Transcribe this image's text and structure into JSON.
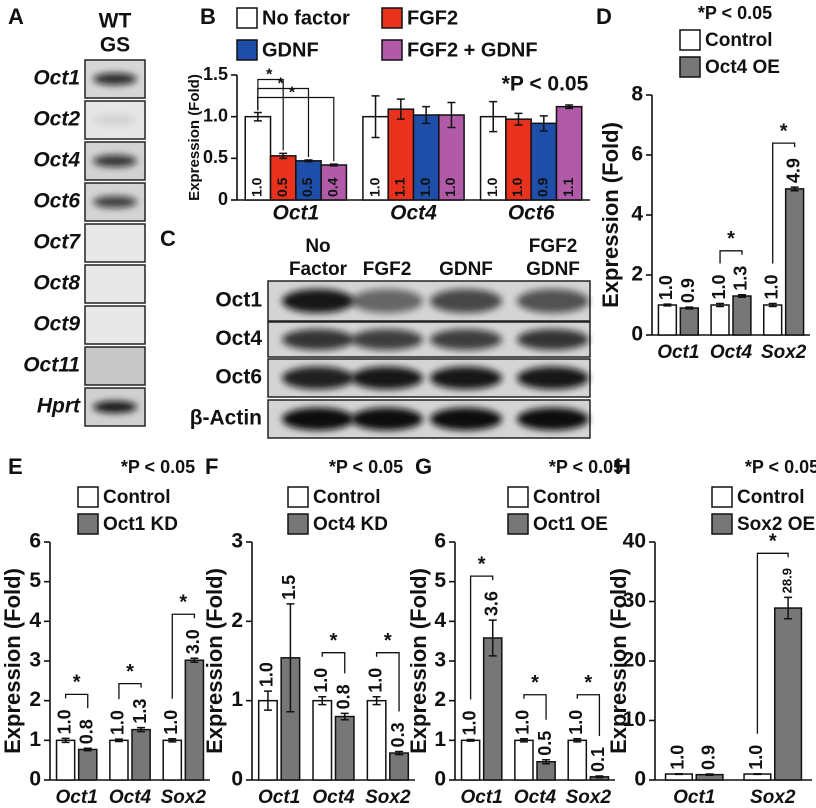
{
  "gels": [
    {
      "panel": "A",
      "header": [
        "WT",
        "GS"
      ],
      "rows": [
        "Oct1",
        "Oct2",
        "Oct4",
        "Oct6",
        "Oct7",
        "Oct8",
        "Oct9",
        "Oct11",
        "Hprt"
      ]
    },
    {
      "panel": "C",
      "columns": [
        [
          "No",
          "Factor"
        ],
        [
          "FGF2"
        ],
        [
          "GDNF"
        ],
        [
          "FGF2",
          "GDNF"
        ]
      ],
      "rows": [
        "Oct1",
        "Oct4",
        "Oct6",
        "β-Actin"
      ]
    }
  ],
  "chart_data": [
    {
      "panel": "B",
      "type": "bar",
      "y_label": "Expression (Fold)",
      "annotation": "*P < 0.05",
      "significance_marker": "*",
      "categories": [
        "Oct1",
        "Oct4",
        "Oct6"
      ],
      "ylim": [
        0,
        1.5
      ],
      "yticks": [
        0,
        0.5,
        {
          "value": 1,
          "label": "1.0"
        },
        1.5
      ],
      "significant": [
        true,
        false,
        false
      ],
      "series": [
        {
          "name": "No factor",
          "color": "#ffffff",
          "values": [
            1,
            1,
            1
          ],
          "errors": [
            0.05,
            0.25,
            0.18
          ],
          "value_labels": [
            "1.0",
            "1.0",
            "1.0"
          ]
        },
        {
          "name": "FGF2",
          "color": "#e8321e",
          "values": [
            0.53,
            1.09,
            0.97
          ],
          "errors": [
            0.03,
            0.12,
            0.07
          ],
          "value_labels": [
            "0.5",
            "1.1",
            "1.0"
          ]
        },
        {
          "name": "GDNF",
          "color": "#1f4ea8",
          "values": [
            0.47,
            1.02,
            0.92
          ],
          "errors": [
            0.01,
            0.1,
            0.09
          ],
          "value_labels": [
            "0.5",
            "1.0",
            "0.9"
          ]
        },
        {
          "name": "FGF2 + GDNF",
          "color": "#b05aa8",
          "values": [
            0.42,
            1.02,
            1.12
          ],
          "errors": [
            0.01,
            0.15,
            0.02
          ],
          "value_labels": [
            "0.4",
            "1.0",
            "1.1"
          ]
        }
      ]
    },
    {
      "panel": "D",
      "type": "bar",
      "y_label": "Expression (Fold)",
      "annotation": "*P < 0.05",
      "significance_marker": "*",
      "categories": [
        "Oct1",
        "Oct4",
        "Sox2"
      ],
      "ylim": [
        0,
        8
      ],
      "yticks": [
        0,
        2,
        4,
        6,
        8
      ],
      "significant": [
        false,
        true,
        true
      ],
      "series": [
        {
          "name": "Control",
          "color": "#ffffff",
          "values": [
            1,
            1,
            1
          ],
          "errors": [
            0.03,
            0.05,
            0.05
          ],
          "value_labels": [
            "1.0",
            "1.0",
            "1.0"
          ]
        },
        {
          "name": "Oct4 OE",
          "color": "#777777",
          "values": [
            0.9,
            1.3,
            4.87
          ],
          "errors": [
            0.03,
            0.04,
            0.06
          ],
          "value_labels": [
            "0.9",
            "1.3",
            "4.9"
          ]
        }
      ]
    },
    {
      "panel": "E",
      "type": "bar",
      "y_label": "Expression (Fold)",
      "annotation": "*P < 0.05",
      "significance_marker": "*",
      "categories": [
        "Oct1",
        "Oct4",
        "Sox2"
      ],
      "ylim": [
        0,
        6
      ],
      "yticks": [
        0,
        1,
        2,
        3,
        4,
        5,
        6
      ],
      "significant": [
        true,
        true,
        true
      ],
      "series": [
        {
          "name": "Control",
          "color": "#ffffff",
          "values": [
            1,
            1,
            1
          ],
          "errors": [
            0.05,
            0.03,
            0.04
          ],
          "value_labels": [
            "1.0",
            "1.0",
            "1.0"
          ]
        },
        {
          "name": "Oct1 KD",
          "color": "#777777",
          "values": [
            0.77,
            1.27,
            3.02
          ],
          "errors": [
            0.03,
            0.05,
            0.05
          ],
          "value_labels": [
            "0.8",
            "1.3",
            "3.0"
          ]
        }
      ]
    },
    {
      "panel": "F",
      "type": "bar",
      "y_label": "Expression (Fold)",
      "annotation": "*P < 0.05",
      "significance_marker": "*",
      "categories": [
        "Oct1",
        "Oct4",
        "Sox2"
      ],
      "ylim": [
        0,
        3
      ],
      "yticks": [
        0,
        1,
        2,
        3
      ],
      "significant": [
        false,
        true,
        true
      ],
      "series": [
        {
          "name": "Control",
          "color": "#ffffff",
          "values": [
            1,
            1,
            1
          ],
          "errors": [
            0.12,
            0.05,
            0.05
          ],
          "value_labels": [
            "1.0",
            "1.0",
            "1.0"
          ]
        },
        {
          "name": "Oct4 KD",
          "color": "#777777",
          "values": [
            1.54,
            0.8,
            0.34
          ],
          "errors": [
            0.68,
            0.04,
            0.02
          ],
          "value_labels": [
            "1.5",
            "0.8",
            "0.3"
          ]
        }
      ]
    },
    {
      "panel": "G",
      "type": "bar",
      "y_label": "Expression (Fold)",
      "annotation": "*P < 0.05",
      "significance_marker": "*",
      "categories": [
        "Oct1",
        "Oct4",
        "Sox2"
      ],
      "ylim": [
        0,
        6
      ],
      "yticks": [
        0,
        1,
        2,
        3,
        4,
        5,
        6
      ],
      "significant": [
        true,
        true,
        true
      ],
      "series": [
        {
          "name": "Control",
          "color": "#ffffff",
          "values": [
            1,
            1,
            1
          ],
          "errors": [
            0.02,
            0.04,
            0.04
          ],
          "value_labels": [
            "1.0",
            "1.0",
            "1.0"
          ]
        },
        {
          "name": "Oct1 OE",
          "color": "#777777",
          "values": [
            3.58,
            0.46,
            0.08
          ],
          "errors": [
            0.45,
            0.05,
            0.02
          ],
          "value_labels": [
            "3.6",
            "0.5",
            "0.1"
          ]
        }
      ]
    },
    {
      "panel": "H",
      "type": "bar",
      "y_label": "Expression (Fold)",
      "annotation": "*P < 0.05",
      "significance_marker": "*",
      "categories": [
        "Oct1",
        "Sox2"
      ],
      "ylim": [
        0,
        40
      ],
      "yticks": [
        0,
        10,
        20,
        30,
        40
      ],
      "significant": [
        false,
        true
      ],
      "series": [
        {
          "name": "Control",
          "color": "#ffffff",
          "values": [
            1,
            1
          ],
          "errors": [
            0.05,
            0.05
          ],
          "value_labels": [
            "1.0",
            "1.0"
          ]
        },
        {
          "name": "Sox2 OE",
          "color": "#777777",
          "values": [
            0.9,
            28.9
          ],
          "errors": [
            0.1,
            1.8
          ],
          "value_labels": [
            "0.9",
            "28.9"
          ]
        }
      ]
    }
  ]
}
